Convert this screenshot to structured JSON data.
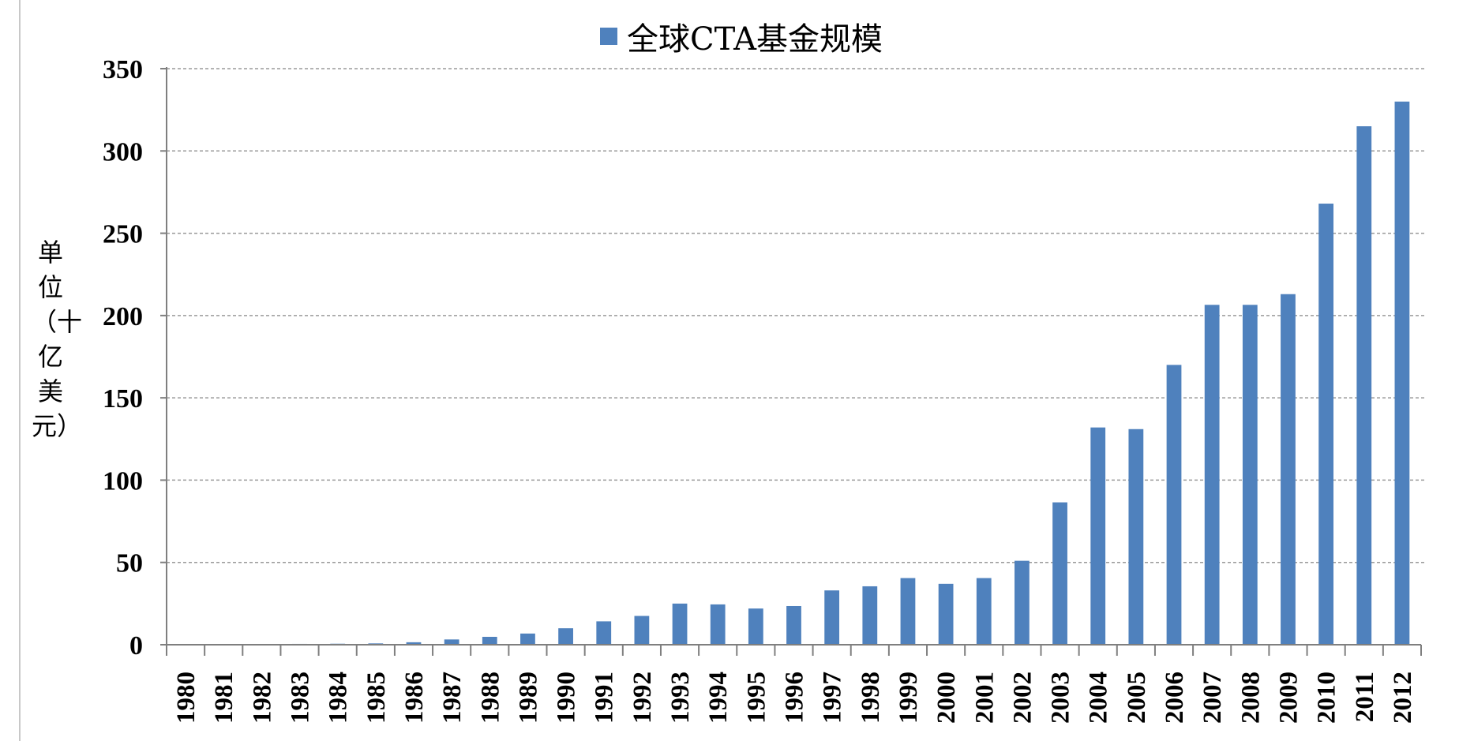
{
  "chart_data": {
    "type": "bar",
    "title": "",
    "legend": {
      "position": "top-center",
      "entries": [
        "全球CTA基金规模"
      ]
    },
    "series": [
      {
        "name": "全球CTA基金规模",
        "color": "#4F81BD",
        "values": [
          0.3,
          0.4,
          0.4,
          0.5,
          0.6,
          0.8,
          1.5,
          3.2,
          4.8,
          6.8,
          10.0,
          14.2,
          17.5,
          25.0,
          24.5,
          22.0,
          23.5,
          33.0,
          35.5,
          40.5,
          37.0,
          40.5,
          51.0,
          86.5,
          132.0,
          131.0,
          170.0,
          206.5,
          206.5,
          213.0,
          268.0,
          315.0,
          330.0
        ]
      }
    ],
    "categories": [
      "1980",
      "1981",
      "1982",
      "1983",
      "1984",
      "1985",
      "1986",
      "1987",
      "1988",
      "1989",
      "1990",
      "1991",
      "1992",
      "1993",
      "1994",
      "1995",
      "1996",
      "1997",
      "1998",
      "1999",
      "2000",
      "2001",
      "2002",
      "2003",
      "2004",
      "2005",
      "2006",
      "2007",
      "2008",
      "2009",
      "2010",
      "2011",
      "2012"
    ],
    "xlabel": "",
    "ylabel": "单位（十亿美元）",
    "ylim": [
      0,
      350
    ],
    "yticks": [
      0,
      50,
      100,
      150,
      200,
      250,
      300,
      350
    ],
    "grid": {
      "y": true,
      "style": "dashed",
      "color": "#9a9a9a"
    },
    "axis_color": "#7f7f7f"
  }
}
